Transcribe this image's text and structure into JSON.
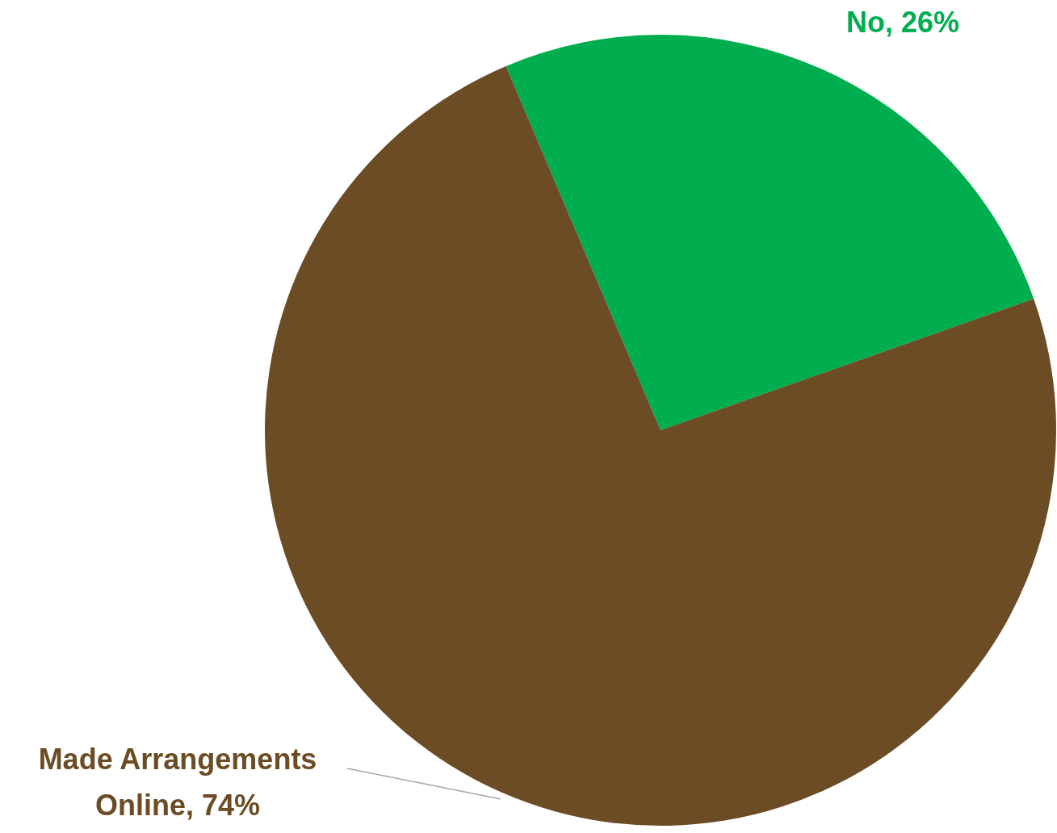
{
  "chart_data": {
    "type": "pie",
    "categories": [
      "No",
      "Made Arrangements Online"
    ],
    "values": [
      26,
      74
    ],
    "colors": [
      "#00ae4f",
      "#6b4c24"
    ],
    "value_labels": [
      "26%",
      "74%"
    ],
    "legend": false
  }
}
